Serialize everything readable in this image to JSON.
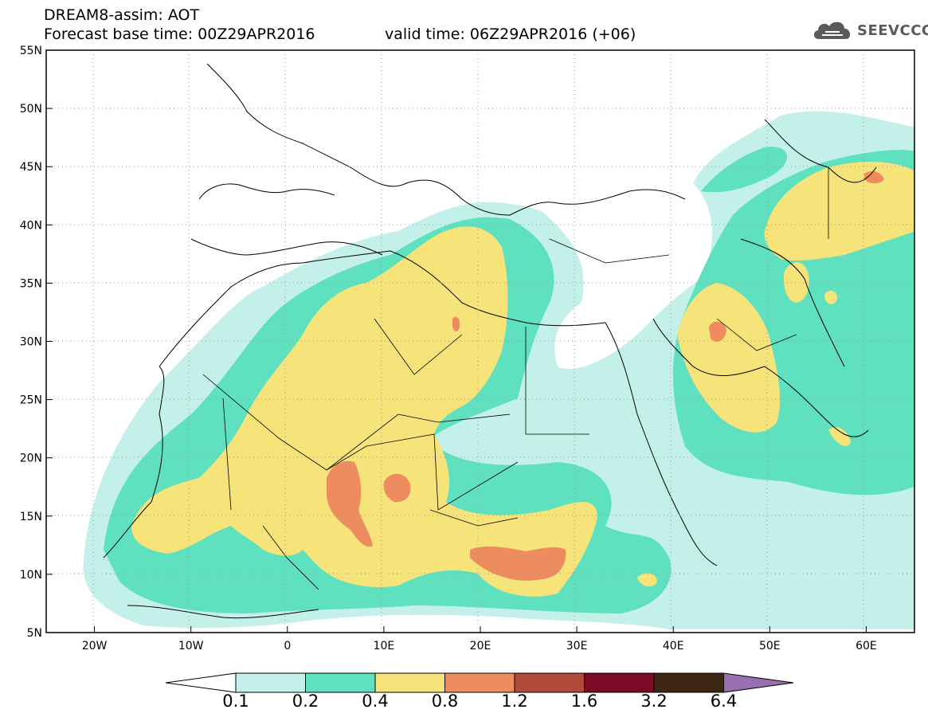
{
  "title": {
    "line1": "DREAM8-assim: AOT",
    "line2": "Forecast base time: 00Z29APR2016",
    "valid": "valid time: 06Z29APR2016 (+06)"
  },
  "logo": {
    "text": "SEEVCCC",
    "icon": "cloud-icon"
  },
  "map": {
    "lon_range": [
      -25,
      65
    ],
    "lat_range": [
      5,
      55
    ],
    "lat_ticks": [
      "5N",
      "10N",
      "15N",
      "20N",
      "25N",
      "30N",
      "35N",
      "40N",
      "45N",
      "50N",
      "55N"
    ],
    "lon_ticks": [
      "20W",
      "10W",
      "0",
      "10E",
      "20E",
      "30E",
      "40E",
      "50E",
      "60E"
    ]
  },
  "colorbar": {
    "labels": [
      "0.1",
      "0.2",
      "0.4",
      "0.8",
      "1.2",
      "1.6",
      "3.2",
      "6.4"
    ],
    "colors": [
      "#ffffff",
      "#c4f0ea",
      "#5fe0bf",
      "#f6e37a",
      "#ec8c5f",
      "#b24a3b",
      "#7a0a26",
      "#3d2714",
      "#9a6fb0"
    ]
  }
}
